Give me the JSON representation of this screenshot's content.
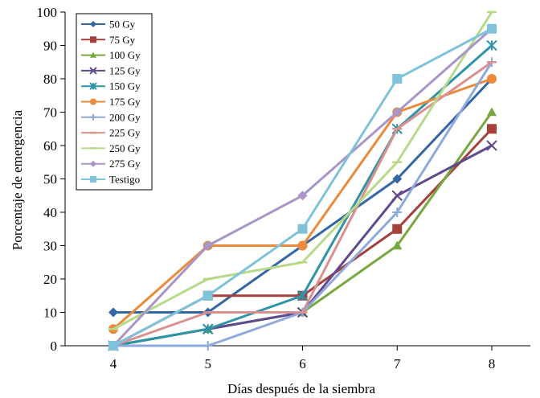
{
  "chart_data": {
    "type": "line",
    "xlabel": "Días después de la siembra",
    "ylabel": "Porcentaje de emergencia",
    "x": [
      4,
      5,
      6,
      7,
      8
    ],
    "ylim": [
      0,
      100
    ],
    "yticks": [
      0,
      10,
      20,
      30,
      40,
      50,
      60,
      70,
      80,
      90,
      100
    ],
    "grid": false,
    "legend_position": "top-left",
    "series": [
      {
        "name": "50 Gy",
        "color": "#3465A4",
        "marker": "diamond",
        "values": [
          10,
          10,
          30,
          50,
          80
        ]
      },
      {
        "name": "75 Gy",
        "color": "#A5403C",
        "marker": "square",
        "values": [
          0,
          15,
          15,
          35,
          65
        ]
      },
      {
        "name": "100 Gy",
        "color": "#77A83F",
        "marker": "triangle",
        "values": [
          0,
          5,
          10,
          30,
          70
        ]
      },
      {
        "name": "125 Gy",
        "color": "#5E4A8C",
        "marker": "x",
        "values": [
          0,
          5,
          10,
          45,
          60
        ]
      },
      {
        "name": "150 Gy",
        "color": "#2E94A8",
        "marker": "star",
        "values": [
          0,
          5,
          15,
          65,
          90
        ]
      },
      {
        "name": "175 Gy",
        "color": "#EB8A3A",
        "marker": "circle",
        "values": [
          5,
          30,
          30,
          70,
          80
        ]
      },
      {
        "name": "200 Gy",
        "color": "#8EA9DB",
        "marker": "plus",
        "values": [
          0,
          0,
          10,
          40,
          85
        ]
      },
      {
        "name": "225 Gy",
        "color": "#D9908E",
        "marker": "dash",
        "values": [
          0,
          10,
          10,
          65,
          85
        ]
      },
      {
        "name": "250 Gy",
        "color": "#B7D98A",
        "marker": "dash",
        "values": [
          5,
          20,
          25,
          55,
          100
        ]
      },
      {
        "name": "275 Gy",
        "color": "#A995C8",
        "marker": "diamond",
        "values": [
          0,
          30,
          45,
          70,
          95
        ]
      },
      {
        "name": "Testigo",
        "color": "#7FC3DB",
        "marker": "square",
        "values": [
          0,
          15,
          35,
          80,
          95
        ]
      }
    ]
  }
}
